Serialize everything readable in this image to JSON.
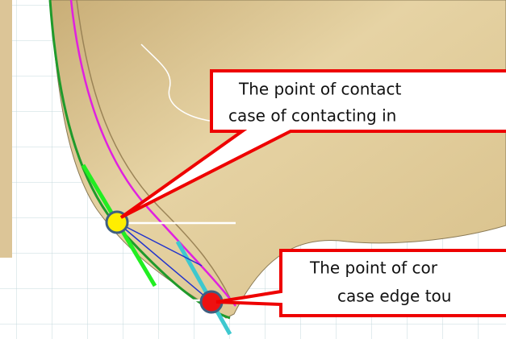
{
  "callouts": [
    {
      "lines": [
        "The point of contact",
        "case of contacting in"
      ]
    },
    {
      "lines": [
        "The point of cor",
        "case edge tou"
      ]
    }
  ]
}
